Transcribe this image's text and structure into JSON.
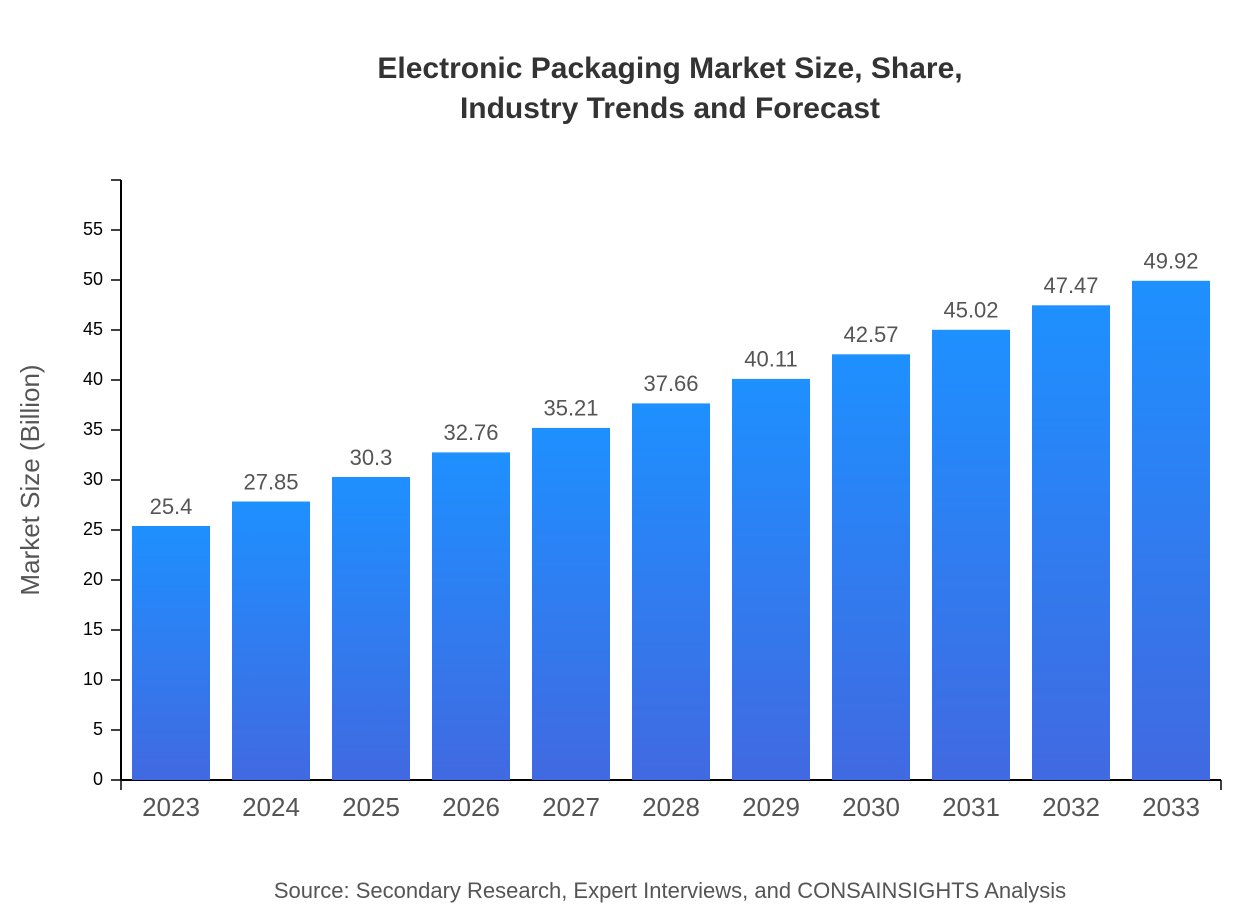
{
  "chart_data": {
    "type": "bar",
    "title": [
      "Electronic Packaging Market Size, Share,",
      "Industry Trends and Forecast"
    ],
    "y_label": "Market Size (Billion)",
    "source": "Source: Secondary Research, Expert Interviews, and CONSAINSIGHTS Analysis",
    "categories": [
      "2023",
      "2024",
      "2025",
      "2026",
      "2027",
      "2028",
      "2029",
      "2030",
      "2031",
      "2032",
      "2033"
    ],
    "values": [
      25.4,
      27.85,
      30.3,
      32.76,
      35.21,
      37.66,
      40.11,
      42.57,
      45.02,
      47.47,
      49.92
    ],
    "color": "#1e90ff",
    "color_bottom": "#4169e1",
    "ylim": [
      0,
      60
    ],
    "yticks": [
      0,
      5,
      10,
      15,
      20,
      25,
      30,
      35,
      40,
      45,
      50,
      55
    ],
    "grid": false
  }
}
